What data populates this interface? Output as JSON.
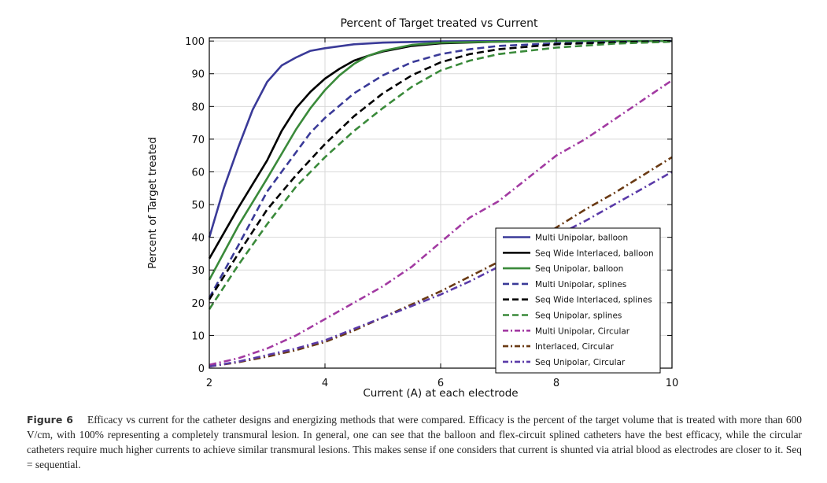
{
  "chart_data": {
    "type": "line",
    "title": "Percent of Target treated vs Current",
    "xlabel": "Current (A) at each electrode",
    "ylabel": "Percent of Target treated",
    "xlim": [
      2,
      10
    ],
    "ylim": [
      0,
      101
    ],
    "xticks": [
      2,
      4,
      6,
      8,
      10
    ],
    "yticks": [
      0,
      10,
      20,
      30,
      40,
      50,
      60,
      70,
      80,
      90,
      100
    ],
    "grid": true,
    "legend_position": "lower-right",
    "series": [
      {
        "name": "Multi Unipolar, balloon",
        "color": "#3a3a98",
        "style": "solid",
        "x": [
          2,
          2.25,
          2.5,
          2.75,
          3,
          3.25,
          3.5,
          3.75,
          4,
          4.5,
          5,
          6,
          7,
          8,
          9,
          10
        ],
        "y": [
          40,
          55,
          67.5,
          79,
          87.5,
          92.5,
          95,
          97,
          97.8,
          99,
          99.5,
          99.9,
          100,
          100,
          100,
          100
        ]
      },
      {
        "name": "Seq Wide Interlaced, balloon",
        "color": "#000000",
        "style": "solid",
        "x": [
          2,
          2.5,
          3,
          3.25,
          3.5,
          3.75,
          4,
          4.25,
          4.5,
          4.75,
          5,
          5.5,
          6,
          7,
          8,
          9,
          10
        ],
        "y": [
          33.5,
          49,
          63.5,
          72.5,
          79.5,
          84.5,
          88.5,
          91.5,
          94,
          95.5,
          96.8,
          98.5,
          99.3,
          99.8,
          100,
          100,
          100
        ]
      },
      {
        "name": "Seq Unipolar, balloon",
        "color": "#3a8a3a",
        "style": "solid",
        "x": [
          2,
          2.5,
          3,
          3.25,
          3.5,
          3.75,
          4,
          4.25,
          4.5,
          4.75,
          5,
          5.5,
          6,
          7,
          8,
          9,
          10
        ],
        "y": [
          27,
          43.5,
          58,
          65.5,
          73,
          79.5,
          85,
          89.5,
          93,
          95.5,
          97,
          98.8,
          99.5,
          99.8,
          100,
          100,
          100
        ]
      },
      {
        "name": "Multi Unipolar, splines",
        "color": "#3a3a98",
        "style": "dashed",
        "x": [
          2,
          2.5,
          3,
          3.5,
          3.75,
          4,
          4.5,
          5,
          5.5,
          6,
          6.5,
          7,
          8,
          9,
          10
        ],
        "y": [
          21.5,
          37.5,
          54,
          66,
          72,
          76.5,
          84,
          89.5,
          93.5,
          96,
          97.5,
          98.5,
          99.3,
          99.7,
          100
        ]
      },
      {
        "name": "Seq Wide Interlaced, splines",
        "color": "#000000",
        "style": "dashed",
        "x": [
          2,
          2.5,
          3,
          3.5,
          4,
          4.5,
          5,
          5.5,
          6,
          6.5,
          7,
          8,
          9,
          10
        ],
        "y": [
          21,
          35,
          48.5,
          59,
          68.5,
          77,
          84,
          89.5,
          93.5,
          96,
          97.5,
          99,
          99.6,
          100
        ]
      },
      {
        "name": "Seq Unipolar, splines",
        "color": "#3a8a3a",
        "style": "dashed",
        "x": [
          2,
          2.5,
          3,
          3.5,
          4,
          4.5,
          5,
          5.5,
          6,
          6.5,
          7,
          8,
          9,
          10
        ],
        "y": [
          18,
          31.5,
          44,
          55.5,
          64.5,
          72.5,
          79.5,
          86,
          91,
          94,
          96,
          98,
          99.2,
          99.8
        ]
      },
      {
        "name": "Multi Unipolar, Circular",
        "color": "#a23aa2",
        "style": "dashdot",
        "x": [
          2,
          2.5,
          3,
          3.5,
          4,
          4.5,
          5,
          5.5,
          6,
          6.3,
          6.5,
          7,
          7.5,
          8,
          8.5,
          9,
          9.5,
          10
        ],
        "y": [
          1,
          3,
          6,
          10,
          15,
          20,
          25,
          31,
          38.5,
          43,
          46,
          51,
          58,
          65,
          70,
          76,
          82,
          88
        ]
      },
      {
        "name": "Interlaced, Circular",
        "color": "#6a3a14",
        "style": "dashdot",
        "x": [
          2,
          2.5,
          3,
          3.5,
          4,
          4.5,
          5,
          5.5,
          6,
          6.5,
          7,
          7.5,
          8,
          8.5,
          9,
          9.5,
          10
        ],
        "y": [
          0.5,
          1.8,
          3.5,
          5.5,
          8,
          11.5,
          15.5,
          19.5,
          23.5,
          28,
          32.5,
          37.5,
          43,
          48.5,
          53.5,
          59,
          64.5
        ]
      },
      {
        "name": "Seq Unipolar, Circular",
        "color": "#5a3aa8",
        "style": "dashdot",
        "x": [
          2,
          2.5,
          3,
          3.5,
          4,
          4.5,
          5,
          5.5,
          6,
          6.5,
          7,
          7.5,
          8,
          8.5,
          9,
          9.5,
          10
        ],
        "y": [
          0.5,
          2,
          4,
          6,
          8.5,
          12,
          15.5,
          19,
          22.5,
          26.5,
          31,
          35.5,
          40.5,
          45,
          50,
          55,
          60
        ]
      }
    ]
  },
  "caption": {
    "label": "Figure 6",
    "text": "Efficacy vs current for the catheter designs and energizing methods that were compared. Efficacy is the percent of the target volume that is treated with more than 600 V/cm, with 100% representing a completely transmural lesion. In general, one can see that the balloon and flex-circuit splined catheters have the best efficacy, while the circular catheters require much higher currents to achieve similar transmural lesions. This makes sense if one considers that current is shunted via atrial blood as electrodes are closer to it. Seq = sequential."
  }
}
